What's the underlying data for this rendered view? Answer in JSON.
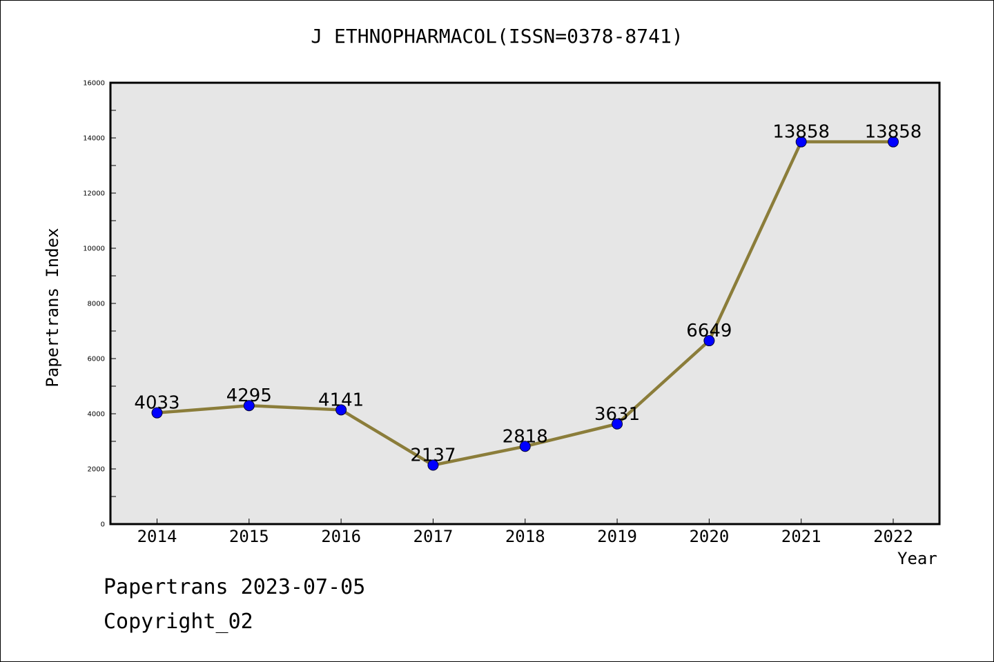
{
  "chart_data": {
    "type": "line",
    "title": "J ETHNOPHARMACOL(ISSN=0378-8741)",
    "xlabel": "Year",
    "ylabel": "Papertrans Index",
    "categories": [
      "2014",
      "2015",
      "2016",
      "2017",
      "2018",
      "2019",
      "2020",
      "2021",
      "2022"
    ],
    "values": [
      4033,
      4295,
      4141,
      2137,
      2818,
      3631,
      6649,
      13858,
      13858
    ],
    "data_labels": [
      "4033",
      "4295",
      "4141",
      "2137",
      "2818",
      "3631",
      "6649",
      "13858",
      "13858"
    ],
    "ylim": [
      0,
      16000
    ],
    "yticks": [
      0,
      2000,
      4000,
      6000,
      8000,
      10000,
      12000,
      14000,
      16000
    ],
    "grid": false,
    "colors": {
      "line": "#8B7D3A",
      "marker": "#0000FF",
      "plot_background": "#E6E6E6"
    }
  },
  "footer": {
    "line1": "Papertrans 2023-07-05",
    "line2": "Copyright_02"
  }
}
